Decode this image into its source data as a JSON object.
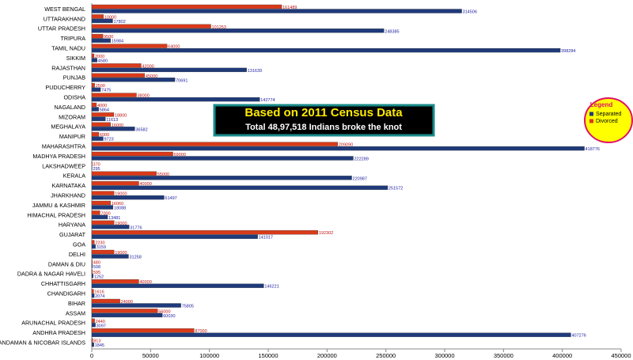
{
  "chart_data": {
    "type": "hbar",
    "annotations": [
      "Based on 2011 Census Data",
      "Total 48,97,518 Indians broke the knot"
    ],
    "legend_title": "Legend",
    "legend": "right",
    "categories": [
      "WEST BENGAL",
      "UTTARAKHAND",
      "UTTAR PRADESH",
      "TRIPURA",
      "TAMIL NADU",
      "SIKKIM",
      "RAJASTHAN",
      "PUNJAB",
      "PUDUCHERRY",
      "ODISHA",
      "NAGALAND",
      "MIZORAM",
      "MEGHALAYA",
      "MANIPUR",
      "MAHARASHTRA",
      "MADHYA PRADESH",
      "LAKSHADWEEP",
      "KERALA",
      "KARNATAKA",
      "JHARKHAND",
      "JAMMU & KASHMIR",
      "HIMACHAL PRADESH",
      "HARYANA",
      "GUJARAT",
      "GOA",
      "DELHI",
      "DAMAN & DIU",
      "DADRA & NAGAR HAVELI",
      "CHHATTISGARH",
      "CHANDIGARH",
      "BIHAR",
      "ASSAM",
      "ARUNACHAL PRADESH",
      "ANDHRA PRADESH",
      "ANDAMAN & NICOBAR ISLANDS"
    ],
    "series": [
      {
        "name": "Separated",
        "color": "#1f3a7a",
        "values": [
          314506,
          17802,
          248385,
          15984,
          398284,
          4580,
          131639,
          70691,
          7475,
          142774,
          5864,
          11613,
          36582,
          9723,
          418776,
          222289,
          295,
          220987,
          251572,
          61497,
          18088,
          13481,
          31776,
          141017,
          3159,
          31258,
          598,
          1252,
          146221,
          2074,
          75805,
          60030,
          3097,
          407276,
          1845
        ]
      },
      {
        "name": "Divorced",
        "color": "#d93a1a",
        "values": [
          161489,
          10000,
          101253,
          9500,
          64000,
          2000,
          42000,
          45000,
          2500,
          38000,
          4000,
          18800,
          16000,
          6000,
          209090,
          69000,
          370,
          55000,
          40000,
          19000,
          16060,
          7000,
          19000,
          192302,
          2230,
          19000,
          480,
          595,
          40000,
          1616,
          24000,
          56000,
          2440,
          87000,
          813
        ]
      }
    ],
    "xlim": [
      0,
      450000
    ],
    "xticks": [
      0,
      50000,
      100000,
      150000,
      200000,
      250000,
      300000,
      350000,
      400000,
      450000
    ]
  }
}
